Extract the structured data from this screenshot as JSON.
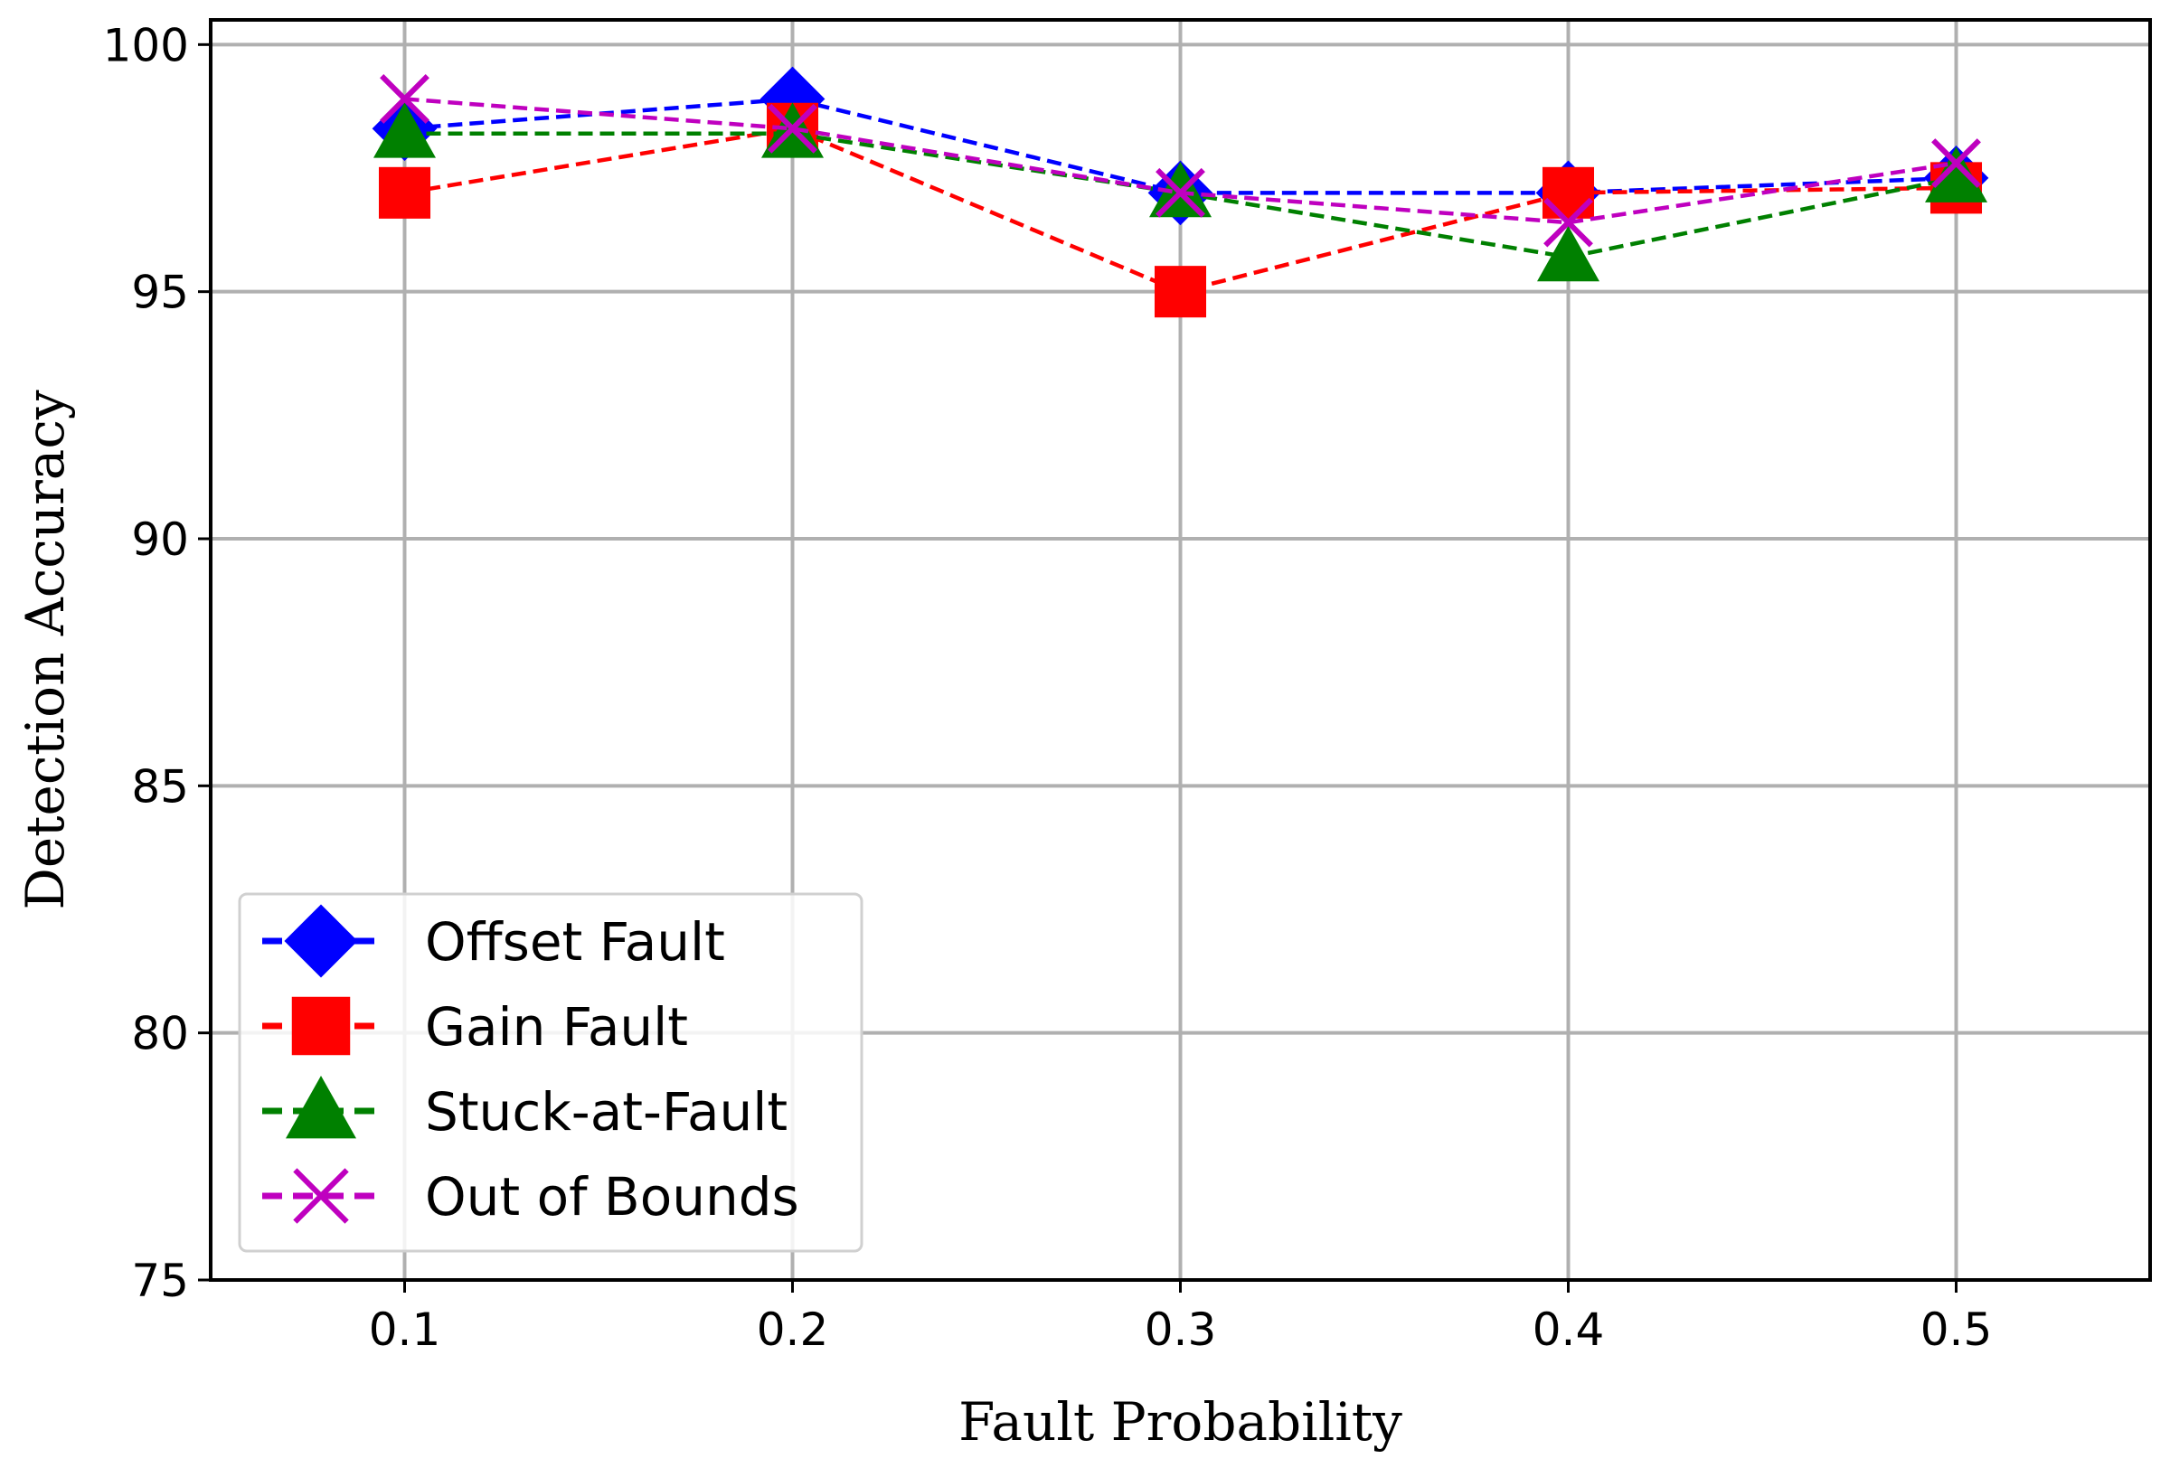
{
  "chart_data": {
    "type": "line",
    "x": [
      0.1,
      0.2,
      0.3,
      0.4,
      0.5
    ],
    "x_tick_labels": [
      "0.1",
      "0.2",
      "0.3",
      "0.4",
      "0.5"
    ],
    "y_ticks": [
      75,
      80,
      85,
      90,
      95,
      100
    ],
    "y_tick_labels": [
      "75",
      "80",
      "85",
      "90",
      "95",
      "100"
    ],
    "xlabel": "Fault Probability",
    "ylabel": "Detection Accuracy",
    "xlim": [
      0.05,
      0.55
    ],
    "ylim": [
      75,
      100.5
    ],
    "grid": true,
    "legend_position": "lower-left",
    "series": [
      {
        "name": "Offset Fault",
        "color": "#0000ff",
        "marker": "diamond",
        "values": [
          98.3,
          98.9,
          97.0,
          97.0,
          97.3
        ]
      },
      {
        "name": "Gain Fault",
        "color": "#ff0000",
        "marker": "square",
        "values": [
          97.0,
          98.3,
          95.0,
          97.0,
          97.1
        ]
      },
      {
        "name": "Stuck-at-Fault",
        "color": "#008000",
        "marker": "triangle",
        "values": [
          98.2,
          98.2,
          97.0,
          95.7,
          97.3
        ]
      },
      {
        "name": "Out of Bounds",
        "color": "#bf00bf",
        "marker": "x",
        "values": [
          98.9,
          98.3,
          97.0,
          96.4,
          97.6
        ]
      }
    ]
  }
}
